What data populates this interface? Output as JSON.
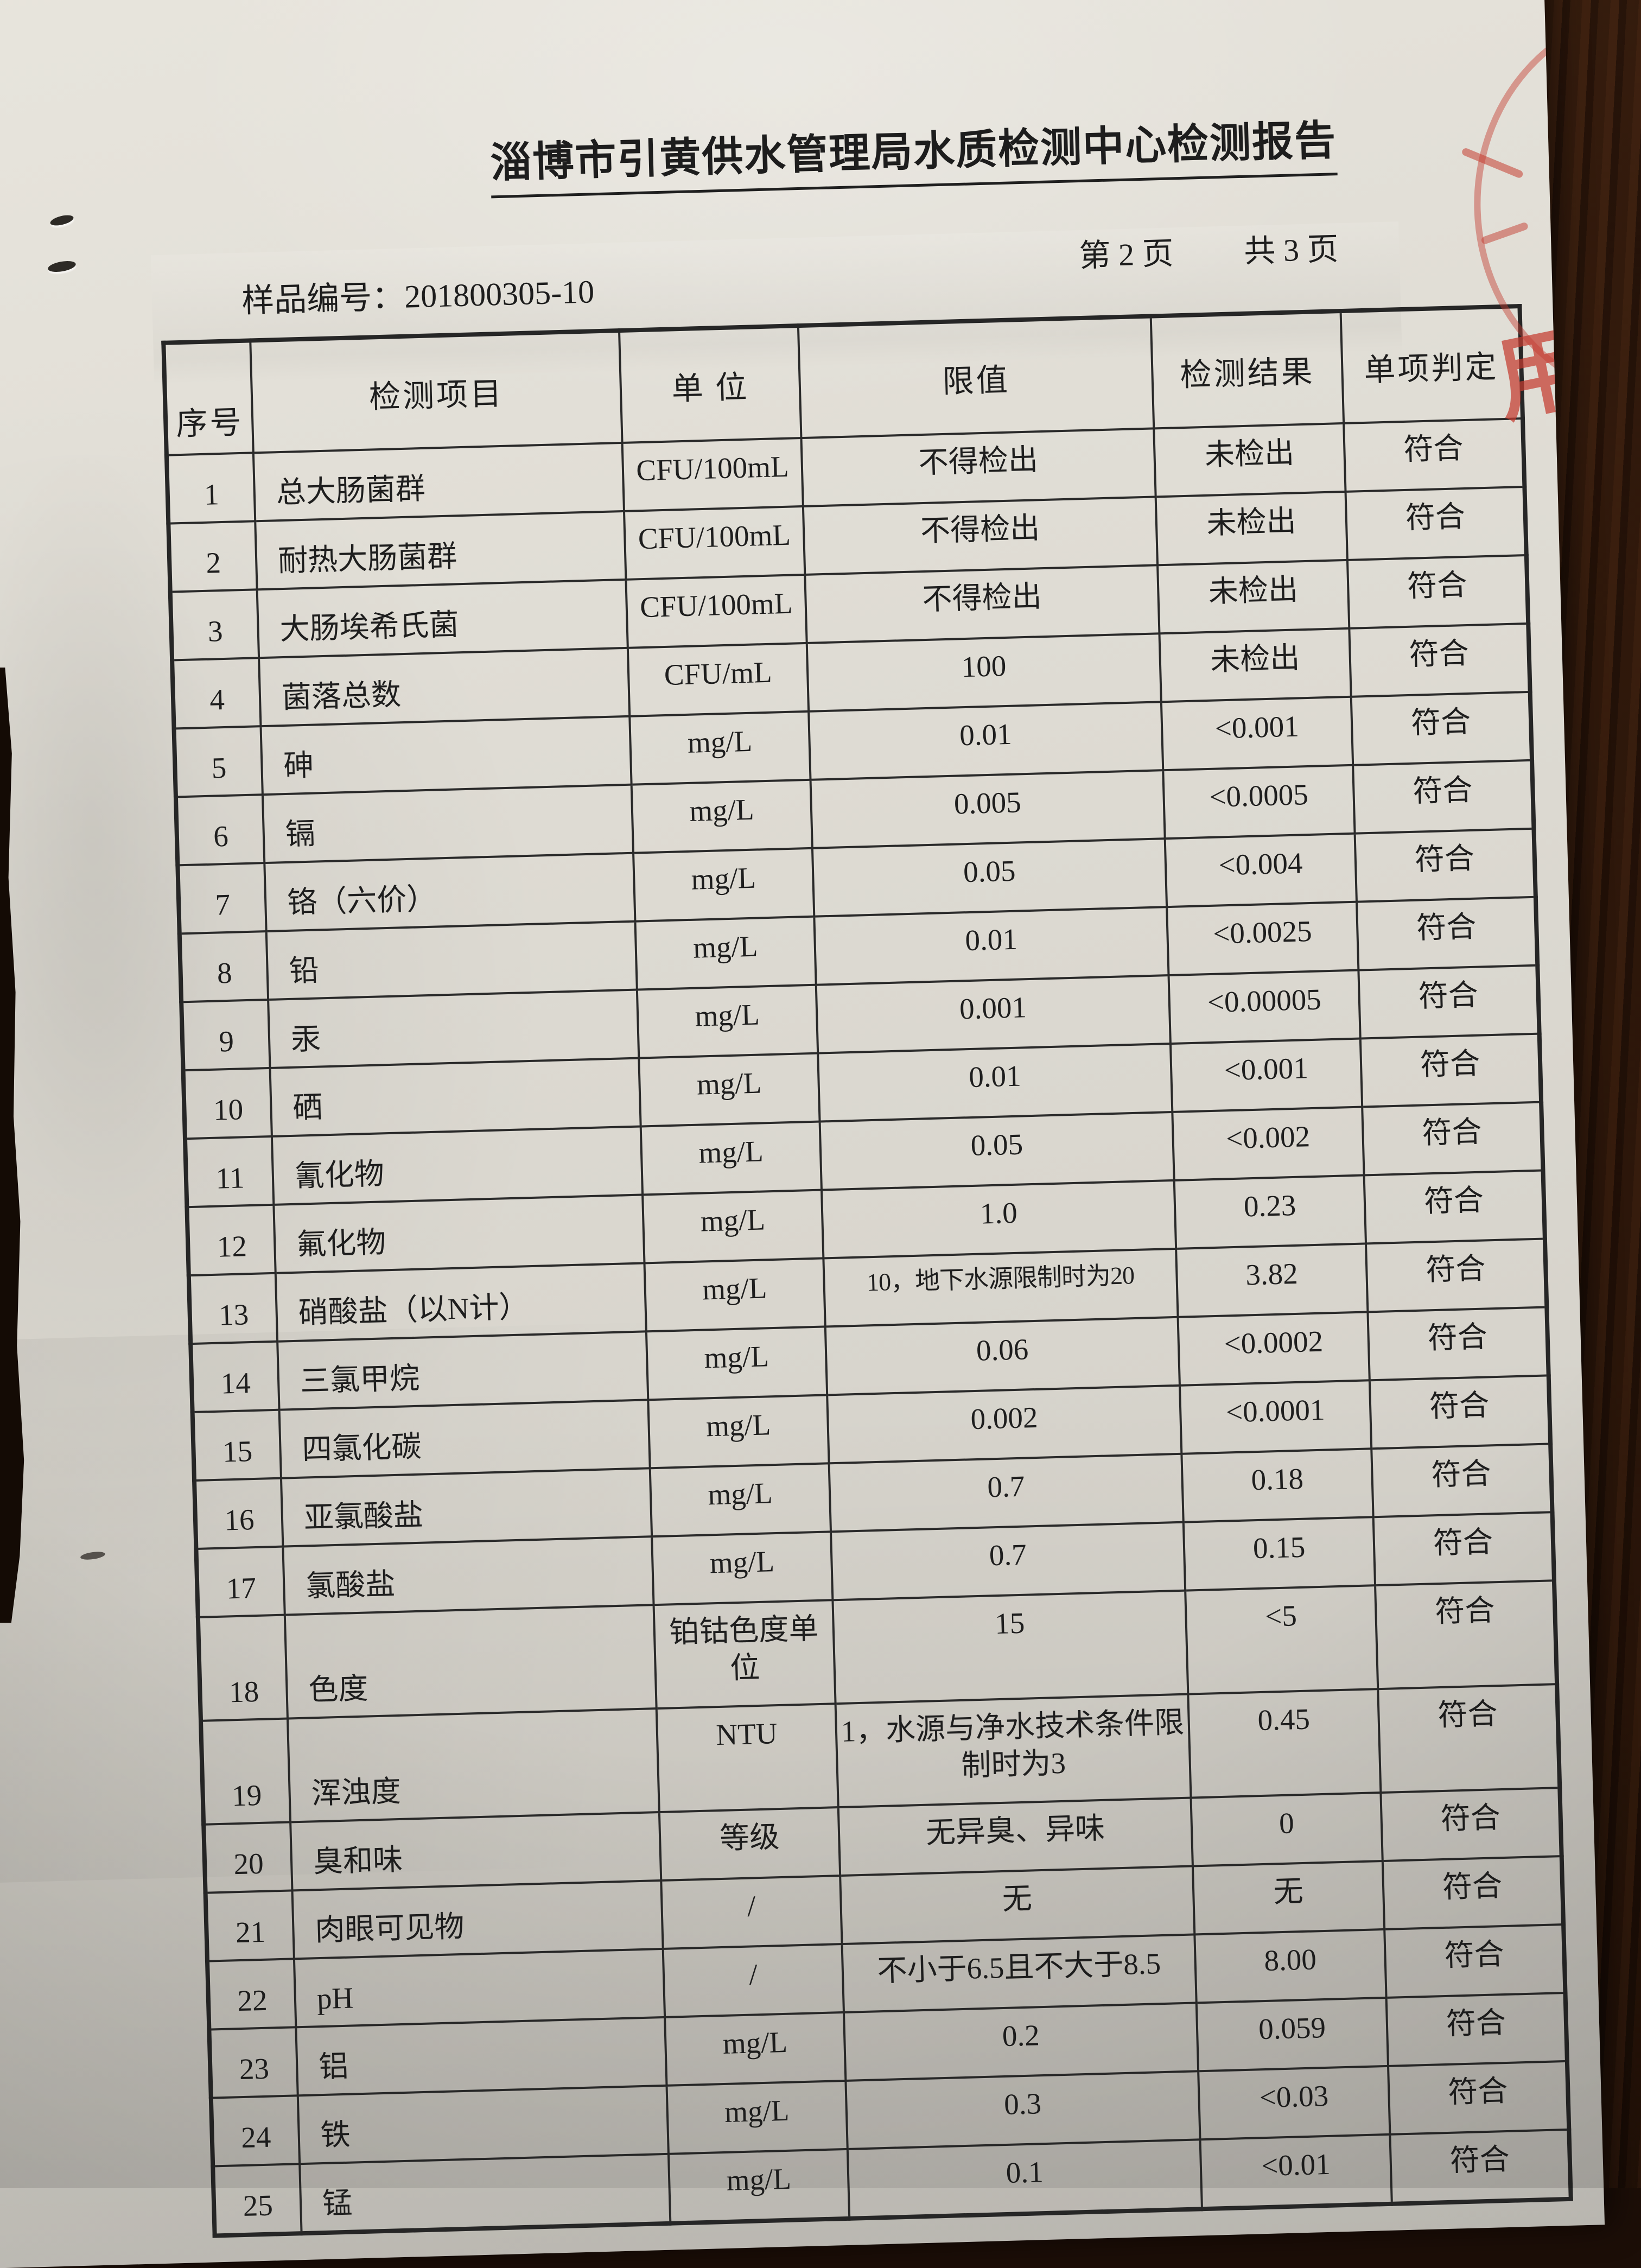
{
  "page": {
    "title": "淄博市引黄供水管理局水质检测中心检测报告",
    "page_current": "第 2 页",
    "page_total": "共 3 页",
    "sample_label": "样品编号：",
    "sample_no": "201800305-10"
  },
  "table": {
    "headers": [
      "序号",
      "检测项目",
      "单 位",
      "限值",
      "检测结果",
      "单项判定"
    ],
    "rows": [
      {
        "no": "1",
        "item": "总大肠菌群",
        "unit": "CFU/100mL",
        "limit": "不得检出",
        "result": "未检出",
        "judgment": "符合"
      },
      {
        "no": "2",
        "item": "耐热大肠菌群",
        "unit": "CFU/100mL",
        "limit": "不得检出",
        "result": "未检出",
        "judgment": "符合"
      },
      {
        "no": "3",
        "item": "大肠埃希氏菌",
        "unit": "CFU/100mL",
        "limit": "不得检出",
        "result": "未检出",
        "judgment": "符合"
      },
      {
        "no": "4",
        "item": "菌落总数",
        "unit": "CFU/mL",
        "limit": "100",
        "result": "未检出",
        "judgment": "符合"
      },
      {
        "no": "5",
        "item": "砷",
        "unit": "mg/L",
        "limit": "0.01",
        "result": "<0.001",
        "judgment": "符合"
      },
      {
        "no": "6",
        "item": "镉",
        "unit": "mg/L",
        "limit": "0.005",
        "result": "<0.0005",
        "judgment": "符合"
      },
      {
        "no": "7",
        "item": "铬（六价）",
        "unit": "mg/L",
        "limit": "0.05",
        "result": "<0.004",
        "judgment": "符合"
      },
      {
        "no": "8",
        "item": "铅",
        "unit": "mg/L",
        "limit": "0.01",
        "result": "<0.0025",
        "judgment": "符合"
      },
      {
        "no": "9",
        "item": "汞",
        "unit": "mg/L",
        "limit": "0.001",
        "result": "<0.00005",
        "judgment": "符合"
      },
      {
        "no": "10",
        "item": "硒",
        "unit": "mg/L",
        "limit": "0.01",
        "result": "<0.001",
        "judgment": "符合"
      },
      {
        "no": "11",
        "item": "氰化物",
        "unit": "mg/L",
        "limit": "0.05",
        "result": "<0.002",
        "judgment": "符合"
      },
      {
        "no": "12",
        "item": "氟化物",
        "unit": "mg/L",
        "limit": "1.0",
        "result": "0.23",
        "judgment": "符合"
      },
      {
        "no": "13",
        "item": "硝酸盐（以N计）",
        "unit": "mg/L",
        "limit": "10，地下水源限制时为20",
        "result": "3.82",
        "judgment": "符合",
        "small_limit": true
      },
      {
        "no": "14",
        "item": "三氯甲烷",
        "unit": "mg/L",
        "limit": "0.06",
        "result": "<0.0002",
        "judgment": "符合"
      },
      {
        "no": "15",
        "item": "四氯化碳",
        "unit": "mg/L",
        "limit": "0.002",
        "result": "<0.0001",
        "judgment": "符合"
      },
      {
        "no": "16",
        "item": "亚氯酸盐",
        "unit": "mg/L",
        "limit": "0.7",
        "result": "0.18",
        "judgment": "符合"
      },
      {
        "no": "17",
        "item": "氯酸盐",
        "unit": "mg/L",
        "limit": "0.7",
        "result": "0.15",
        "judgment": "符合"
      },
      {
        "no": "18",
        "item": "色度",
        "unit": "铂钴色度单位",
        "limit": "15",
        "result": "<5",
        "judgment": "符合",
        "tall": true
      },
      {
        "no": "19",
        "item": "浑浊度",
        "unit": "NTU",
        "limit": "1，水源与净水技术条件限制时为3",
        "result": "0.45",
        "judgment": "符合",
        "tall": true
      },
      {
        "no": "20",
        "item": "臭和味",
        "unit": "等级",
        "limit": "无异臭、异味",
        "result": "0",
        "judgment": "符合"
      },
      {
        "no": "21",
        "item": "肉眼可见物",
        "unit": "/",
        "limit": "无",
        "result": "无",
        "judgment": "符合"
      },
      {
        "no": "22",
        "item": "pH",
        "unit": "/",
        "limit": "不小于6.5且不大于8.5",
        "result": "8.00",
        "judgment": "符合"
      },
      {
        "no": "23",
        "item": "铝",
        "unit": "mg/L",
        "limit": "0.2",
        "result": "0.059",
        "judgment": "符合"
      },
      {
        "no": "24",
        "item": "铁",
        "unit": "mg/L",
        "limit": "0.3",
        "result": "<0.03",
        "judgment": "符合"
      },
      {
        "no": "25",
        "item": "锰",
        "unit": "mg/L",
        "limit": "0.1",
        "result": "<0.01",
        "judgment": "符合"
      }
    ]
  },
  "stamp": {
    "fragment_char": "用",
    "color": "#c43c30"
  },
  "colors": {
    "paper": "#dcd9d1",
    "wood_dark": "#24130a",
    "ink": "#222222",
    "table_line": "#2a2a2a",
    "stamp_red": "#c43c30"
  }
}
